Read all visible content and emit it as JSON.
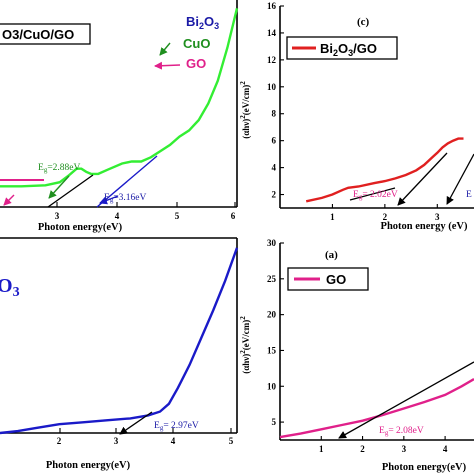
{
  "chart_data": [
    {
      "panel": "top-left",
      "type": "line",
      "xlabel": "Photon energy(eV)",
      "ylabel": "",
      "x_ticks": [
        3,
        4,
        5,
        6
      ],
      "xlim": [
        1.05,
        6.0
      ],
      "ylim": [
        0,
        10
      ],
      "legend_box_text": "O3/CuO/GO",
      "legend_labels": [
        {
          "text": "Bi2O3",
          "color": "#1a1aa6"
        },
        {
          "text": "CuO",
          "color": "#1f8f1f"
        },
        {
          "text": "GO",
          "color": "#e0208a"
        }
      ],
      "series": [
        {
          "color": "#33ee33",
          "x": [
            1.05,
            1.5,
            2.0,
            2.3,
            2.5,
            2.65,
            2.75,
            2.85,
            2.95,
            3.1,
            3.3,
            3.6,
            3.8,
            4.0,
            4.2,
            4.4,
            4.6,
            4.8,
            5.0,
            5.2,
            5.4,
            5.6,
            5.8,
            6.0
          ],
          "y": [
            1.0,
            1.0,
            1.05,
            1.2,
            1.55,
            1.85,
            1.85,
            1.7,
            1.6,
            1.6,
            1.8,
            2.1,
            2.2,
            2.2,
            2.4,
            2.7,
            3.0,
            3.4,
            3.7,
            4.2,
            5.0,
            6.1,
            7.7,
            9.6
          ]
        }
      ],
      "annotations": [
        {
          "text": "Eg=2.88eV",
          "color": "#1f8f1f",
          "arrow_to_x": 2.88
        },
        {
          "text": "Eg=3.16eV",
          "color": "#1a1aa6",
          "arrow_to_x": 3.16
        }
      ]
    },
    {
      "panel": "top-right",
      "label": "(c)",
      "type": "line",
      "xlabel": "Photon energy (eV)",
      "ylabel": "(αhν)² (eV/cm)²",
      "x_ticks": [
        1,
        2,
        3
      ],
      "y_ticks": [
        2,
        4,
        6,
        8,
        10,
        12,
        14,
        16
      ],
      "xlim": [
        0.0,
        3.7
      ],
      "ylim": [
        1,
        16
      ],
      "legend": "Bi2O3/GO",
      "series": [
        {
          "name": "Bi2O3/GO",
          "color": "#e02020",
          "x": [
            0.5,
            0.8,
            1.0,
            1.2,
            1.3,
            1.5,
            1.8,
            2.0,
            2.2,
            2.4,
            2.6,
            2.75,
            2.9,
            3.0,
            3.1,
            3.2,
            3.3,
            3.4,
            3.5
          ],
          "y": [
            1.5,
            1.75,
            2.0,
            2.35,
            2.5,
            2.6,
            2.85,
            3.0,
            3.2,
            3.45,
            3.8,
            4.2,
            4.75,
            5.1,
            5.5,
            5.8,
            6.0,
            6.15,
            6.15
          ]
        }
      ],
      "annotations": [
        {
          "text": "Eg= 2.02eV",
          "color": "#e0208a",
          "arrow_to_x": 2.02
        },
        {
          "text": "E",
          "color": "#1a1aa6",
          "arrow_to_x": 3.2
        }
      ]
    },
    {
      "panel": "bottom-left",
      "type": "line",
      "xlabel": "Photon energy(eV)",
      "x_ticks": [
        2,
        3,
        4,
        5
      ],
      "xlim": [
        1.0,
        5.0
      ],
      "ylim": [
        0,
        10
      ],
      "legend_box_text": "O3",
      "series": [
        {
          "color": "#1a1ac8",
          "x": [
            1.0,
            1.3,
            1.6,
            2.0,
            2.4,
            2.8,
            3.2,
            3.5,
            3.7,
            3.85,
            4.0,
            4.2,
            4.4,
            4.6,
            4.8,
            5.0
          ],
          "y": [
            0.0,
            0.1,
            0.25,
            0.45,
            0.55,
            0.65,
            0.75,
            0.9,
            1.1,
            1.5,
            2.3,
            3.5,
            4.9,
            6.3,
            7.8,
            9.5
          ]
        }
      ],
      "annotations": [
        {
          "text": "Eg= 2.97eV",
          "color": "#1a1aa6",
          "arrow_to_x": 2.97
        }
      ]
    },
    {
      "panel": "bottom-right",
      "label": "(a)",
      "type": "line",
      "xlabel": "Photon energy(eV)",
      "ylabel": "(αhν)² (eV/cm)²",
      "x_ticks": [
        1,
        2,
        3,
        4
      ],
      "y_ticks": [
        5,
        10,
        15,
        20,
        25,
        30
      ],
      "xlim": [
        0.0,
        4.7
      ],
      "ylim": [
        2.5,
        30
      ],
      "legend": "GO",
      "series": [
        {
          "name": "GO",
          "color": "#e0208a",
          "x": [
            0.0,
            0.5,
            1.0,
            1.5,
            2.0,
            2.5,
            3.0,
            3.5,
            4.0,
            4.4,
            4.7
          ],
          "y": [
            2.9,
            3.4,
            4.0,
            4.6,
            5.2,
            6.0,
            6.9,
            7.8,
            8.8,
            10.0,
            11.0
          ]
        }
      ],
      "annotations": [
        {
          "text": "Eg= 2.08eV",
          "color": "#e0208a",
          "arrow_to_x": 2.08
        }
      ]
    }
  ]
}
